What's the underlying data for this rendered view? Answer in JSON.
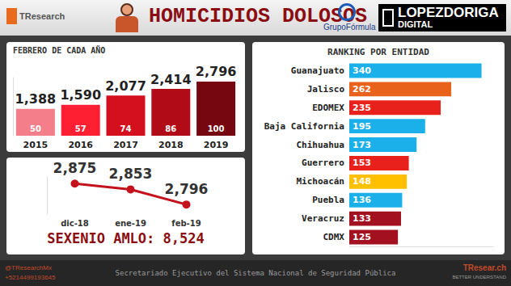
{
  "header": {
    "brand": "TResearch",
    "title": "HOMICIDIOS DOLOSOS",
    "partner": "GrupoFórmula",
    "media": "LOPEZDORIGA",
    "media_sub": "DIGITAL"
  },
  "chart_data": [
    {
      "type": "bar",
      "title": "FEBRERO DE CADA AÑO",
      "categories": [
        "2015",
        "2016",
        "2017",
        "2018",
        "2019"
      ],
      "values": [
        1388,
        1590,
        2077,
        2414,
        2796
      ],
      "value_labels": [
        "1,388",
        "1,590",
        "2,077",
        "2,414",
        "2,796"
      ],
      "index": [
        50,
        57,
        74,
        86,
        100
      ],
      "colors": [
        "#f47f8a",
        "#ff1f33",
        "#d4101f",
        "#b00b17",
        "#760610"
      ],
      "ylim": [
        0,
        3000
      ],
      "data_labels": true,
      "tick_labels": "x",
      "grid": false
    },
    {
      "type": "line",
      "categories": [
        "dic-18",
        "ene-19",
        "feb-19"
      ],
      "values": [
        2875,
        2853,
        2796
      ],
      "value_labels": [
        "2,875",
        "2,853",
        "2,796"
      ],
      "color": "#c4121c",
      "marker": "circle",
      "annotation": "SEXENIO AMLO: 8,524",
      "ylim": [
        2760,
        2900
      ],
      "data_labels": true,
      "tick_labels": "x",
      "grid": false
    },
    {
      "type": "bar",
      "title": "RANKING POR ENTIDAD",
      "orientation": "horizontal",
      "categories": [
        "Guanajuato",
        "Jalisco",
        "EDOMEX",
        "Baja California",
        "Chihuahua",
        "Guerrero",
        "Michoacán",
        "Puebla",
        "Veracruz",
        "CDMX"
      ],
      "values": [
        340,
        262,
        235,
        195,
        173,
        153,
        148,
        136,
        133,
        125
      ],
      "colors": [
        "#1bb0ea",
        "#e8621c",
        "#e8211c",
        "#1bb0ea",
        "#1bb0ea",
        "#e8211c",
        "#ffc000",
        "#1bb0ea",
        "#a3101f",
        "#a3101f"
      ],
      "xlim": [
        0,
        370
      ],
      "data_labels": true,
      "tick_labels": "y",
      "grid": false
    }
  ],
  "footer": {
    "handle": "@TResearchMx",
    "phone": "+5214499193645",
    "source": "Secretariado Ejecutivo del Sistema Nacional de Seguridad Pública",
    "site": "TResear.ch",
    "tagline": "BETTER UNDERSTAND"
  }
}
